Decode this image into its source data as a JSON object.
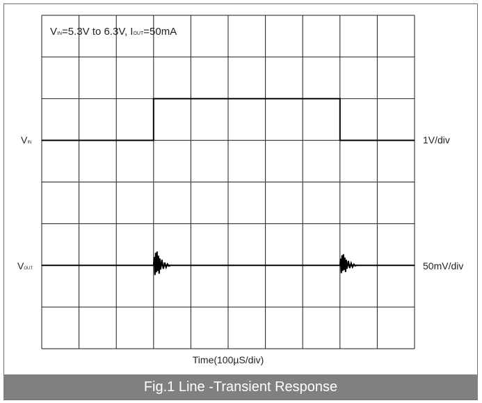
{
  "caption": "Fig.1 Line -Transient Response",
  "colors": {
    "grid": "#1a1a1a",
    "trace": "#000000",
    "caption_bg": "#808080",
    "caption_text": "#ffffff"
  },
  "chart_data": {
    "type": "line",
    "title": "",
    "xlabel": "Time(100µS/div)",
    "x_unit_per_div": "100µS",
    "x_divisions": 10,
    "y_divisions": 8,
    "x_range_div": [
      0,
      10
    ],
    "y_range_div": [
      0,
      8
    ],
    "grid": true,
    "condition": {
      "vin_sub": "IN",
      "vin_range": "=5.3V to 6.3V, ",
      "iout_sub": "OUT",
      "iout_value": "=50mA"
    },
    "channels": [
      {
        "name_main": "V",
        "name_sub": "IN",
        "scale": "1V/div",
        "baseline_div": 5,
        "high_level_div": 6,
        "step_up_at_div": 3.0,
        "step_down_at_div": 8.0
      },
      {
        "name_main": "V",
        "name_sub": "OUT",
        "scale": "50mV/div",
        "baseline_div": 2,
        "transients_at_div": [
          3.0,
          8.0
        ]
      }
    ]
  }
}
